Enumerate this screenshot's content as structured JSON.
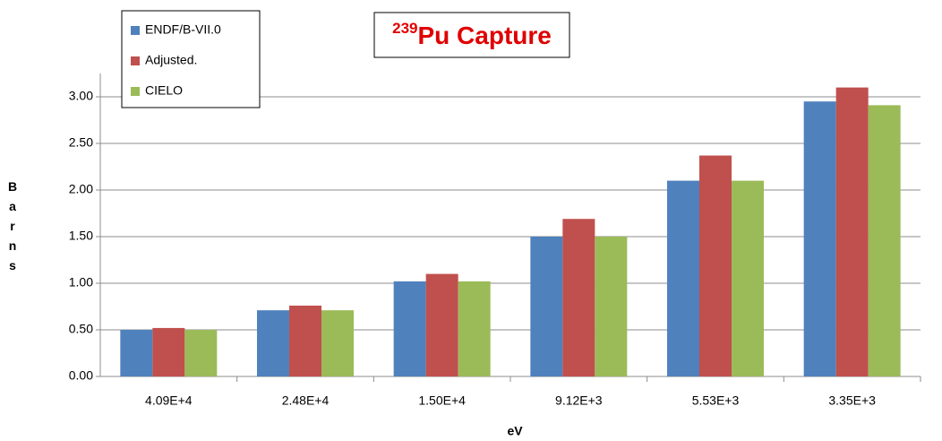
{
  "chart_data": {
    "type": "bar",
    "title_prefix": "239",
    "title": "Pu Capture",
    "xlabel": "eV",
    "ylabel": "Barns",
    "categories": [
      "4.09E+4",
      "2.48E+4",
      "1.50E+4",
      "9.12E+3",
      "5.53E+3",
      "3.35E+3"
    ],
    "series": [
      {
        "name": "ENDF/B-VII.0",
        "color": "#4f81bd",
        "values": [
          0.5,
          0.71,
          1.02,
          1.5,
          2.1,
          2.95
        ]
      },
      {
        "name": "Adjusted.",
        "color": "#c0504d",
        "values": [
          0.52,
          0.76,
          1.1,
          1.69,
          2.37,
          3.1
        ]
      },
      {
        "name": "CIELO",
        "color": "#9bbb59",
        "values": [
          0.5,
          0.71,
          1.02,
          1.5,
          2.1,
          2.91
        ]
      }
    ],
    "ylim": [
      0,
      3.25
    ],
    "yticks": [
      {
        "value": 0,
        "label": "0.00"
      },
      {
        "value": 0.5,
        "label": "0.50"
      },
      {
        "value": 1,
        "label": "1.00"
      },
      {
        "value": 1.5,
        "label": "1.50"
      },
      {
        "value": 2,
        "label": "2.00"
      },
      {
        "value": 2.5,
        "label": "2.50"
      },
      {
        "value": 3,
        "label": "3.00"
      }
    ],
    "grid": true,
    "legend": "top-left"
  }
}
